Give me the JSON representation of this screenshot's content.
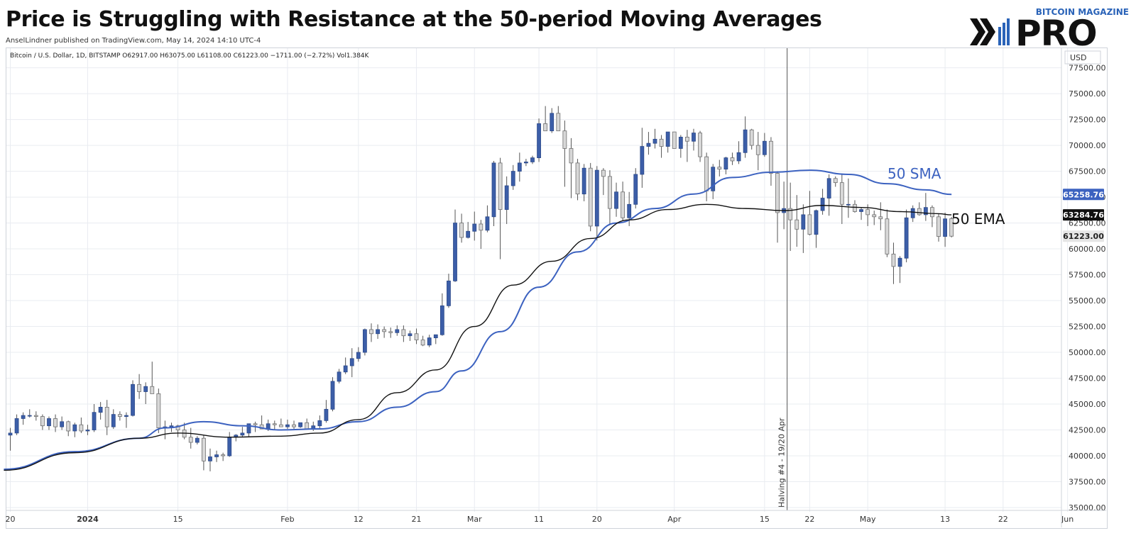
{
  "header": {
    "title": "Price is Struggling with Resistance at the 50-period Moving Averages",
    "byline": "AnselLindner published on TradingView.com, May 14, 2024 14:10 UTC-4",
    "logo_small": "BITCOIN MAGAZINE",
    "logo_big": "PRO"
  },
  "colors": {
    "up": "#3c5ea8",
    "down": "#d8d8d8",
    "wick": "#555555",
    "sma": "#3c62c0",
    "ema": "#111111",
    "grid": "#e9ecf1"
  },
  "chart_data": {
    "type": "candlestick",
    "symbol_info": "Bitcoin / U.S. Dollar, 1D, BITSTAMP  O62917.00  H63075.00  L61108.00  C61223.00  −1711.00 (−2.72%)  Vol1.384K",
    "currency": "USD",
    "y_axis": {
      "ticks": [
        "77500.00",
        "75000.00",
        "72500.00",
        "70000.00",
        "67500.00",
        "65000.00",
        "62500.00",
        "60000.00",
        "57500.00",
        "55000.00",
        "52500.00",
        "50000.00",
        "47500.00",
        "45000.00",
        "42500.00",
        "40000.00",
        "37500.00",
        "35000.00"
      ],
      "range": [
        35000,
        78500
      ]
    },
    "x_axis": {
      "labels": [
        {
          "text": "20",
          "day": 0,
          "bold": false
        },
        {
          "text": "2024",
          "day": 12,
          "bold": true
        },
        {
          "text": "15",
          "day": 26,
          "bold": false
        },
        {
          "text": "Feb",
          "day": 43,
          "bold": false
        },
        {
          "text": "12",
          "day": 54,
          "bold": false
        },
        {
          "text": "21",
          "day": 63,
          "bold": false
        },
        {
          "text": "Mar",
          "day": 72,
          "bold": false
        },
        {
          "text": "11",
          "day": 82,
          "bold": false
        },
        {
          "text": "20",
          "day": 91,
          "bold": false
        },
        {
          "text": "Apr",
          "day": 103,
          "bold": false
        },
        {
          "text": "15",
          "day": 117,
          "bold": false
        },
        {
          "text": "22",
          "day": 124,
          "bold": false
        },
        {
          "text": "May",
          "day": 133,
          "bold": false
        },
        {
          "text": "13",
          "day": 145,
          "bold": false
        },
        {
          "text": "22",
          "day": 154,
          "bold": false
        },
        {
          "text": "Jun",
          "day": 164,
          "bold": false
        }
      ]
    },
    "price_tags": [
      {
        "value": 65258.76,
        "label": "65258.76",
        "bg": "#3c62c0",
        "fg": "#ffffff"
      },
      {
        "value": 63284.76,
        "label": "63284.76",
        "bg": "#111111",
        "fg": "#ffffff"
      },
      {
        "value": 61223.0,
        "label": "61223.00",
        "bg": "#e6e6e6",
        "fg": "#222222"
      }
    ],
    "vertical_marker": {
      "day": 120.5,
      "label": "Halving #4 - 19/20 Apr"
    },
    "series": [
      {
        "name": "50 SMA",
        "points": [
          [
            -1,
            38700
          ],
          [
            10,
            40400
          ],
          [
            20,
            41700
          ],
          [
            24,
            42700
          ],
          [
            30,
            43300
          ],
          [
            36,
            42900
          ],
          [
            42,
            42500
          ],
          [
            48,
            42600
          ],
          [
            54,
            43300
          ],
          [
            60,
            44700
          ],
          [
            66,
            46200
          ],
          [
            70,
            48200
          ],
          [
            76,
            52000
          ],
          [
            82,
            56300
          ],
          [
            88,
            59700
          ],
          [
            94,
            62500
          ],
          [
            100,
            63900
          ],
          [
            106,
            65300
          ],
          [
            112,
            66900
          ],
          [
            118,
            67400
          ],
          [
            124,
            67600
          ],
          [
            130,
            67200
          ],
          [
            136,
            66300
          ],
          [
            142,
            65700
          ],
          [
            146,
            65258.76
          ]
        ]
      },
      {
        "name": "50 EMA",
        "points": [
          [
            -1,
            38600
          ],
          [
            10,
            40300
          ],
          [
            20,
            41700
          ],
          [
            26,
            42200
          ],
          [
            34,
            41800
          ],
          [
            42,
            41900
          ],
          [
            48,
            42200
          ],
          [
            54,
            43500
          ],
          [
            60,
            46100
          ],
          [
            66,
            48300
          ],
          [
            72,
            52500
          ],
          [
            78,
            56500
          ],
          [
            84,
            58800
          ],
          [
            90,
            61000
          ],
          [
            96,
            62800
          ],
          [
            102,
            63800
          ],
          [
            108,
            64300
          ],
          [
            114,
            63900
          ],
          [
            120,
            63700
          ],
          [
            126,
            64200
          ],
          [
            132,
            64000
          ],
          [
            138,
            63600
          ],
          [
            144,
            63400
          ],
          [
            146,
            63284.76
          ]
        ]
      }
    ],
    "candles": [
      [
        0,
        42000,
        42700,
        40500,
        42200
      ],
      [
        1,
        42200,
        44000,
        42000,
        43600
      ],
      [
        2,
        43600,
        44200,
        43000,
        43900
      ],
      [
        3,
        43900,
        44500,
        43700,
        43900
      ],
      [
        4,
        43900,
        44300,
        43400,
        43800
      ],
      [
        5,
        43800,
        44000,
        42500,
        42900
      ],
      [
        6,
        42900,
        43800,
        42500,
        43600
      ],
      [
        7,
        43600,
        44000,
        42300,
        42800
      ],
      [
        8,
        42800,
        43800,
        42500,
        43300
      ],
      [
        9,
        43300,
        43400,
        41900,
        42400
      ],
      [
        10,
        42400,
        43200,
        41800,
        43000
      ],
      [
        11,
        43000,
        43700,
        42200,
        42400
      ],
      [
        12,
        42400,
        43000,
        42000,
        42500
      ],
      [
        13,
        42500,
        45000,
        42300,
        44200
      ],
      [
        14,
        44200,
        45200,
        43500,
        44700
      ],
      [
        15,
        44700,
        45400,
        42000,
        42800
      ],
      [
        16,
        42800,
        44500,
        42600,
        44000
      ],
      [
        17,
        44000,
        44300,
        43400,
        43800
      ],
      [
        18,
        43800,
        44200,
        42700,
        43900
      ],
      [
        19,
        43900,
        47300,
        43800,
        46900
      ],
      [
        20,
        46900,
        47900,
        45500,
        46200
      ],
      [
        21,
        46200,
        47100,
        45000,
        46700
      ],
      [
        22,
        46700,
        49100,
        46000,
        46000
      ],
      [
        23,
        46000,
        46500,
        42200,
        42700
      ],
      [
        24,
        42700,
        43400,
        41600,
        42800
      ],
      [
        25,
        42800,
        43200,
        42300,
        42900
      ],
      [
        26,
        42900,
        43000,
        41800,
        42500
      ],
      [
        27,
        42500,
        43200,
        41600,
        41800
      ],
      [
        28,
        41800,
        42700,
        40700,
        41300
      ],
      [
        29,
        41300,
        41900,
        41100,
        41700
      ],
      [
        30,
        41700,
        42000,
        38600,
        39500
      ],
      [
        31,
        39500,
        40700,
        38500,
        39900
      ],
      [
        32,
        39900,
        40500,
        39400,
        40100
      ],
      [
        33,
        40100,
        40300,
        39500,
        40000
      ],
      [
        34,
        40000,
        42300,
        39900,
        41800
      ],
      [
        35,
        41800,
        42100,
        41400,
        42000
      ],
      [
        36,
        42000,
        42800,
        41800,
        42200
      ],
      [
        37,
        42200,
        43000,
        41800,
        43100
      ],
      [
        38,
        43100,
        43300,
        42300,
        43000
      ],
      [
        39,
        43000,
        43900,
        42700,
        42600
      ],
      [
        40,
        42600,
        43500,
        42400,
        43100
      ],
      [
        41,
        43100,
        43400,
        42500,
        43000
      ],
      [
        42,
        43000,
        43600,
        42800,
        42800
      ],
      [
        43,
        42800,
        43500,
        42600,
        43000
      ],
      [
        44,
        43000,
        43400,
        42600,
        42800
      ],
      [
        45,
        42800,
        43200,
        42700,
        43200
      ],
      [
        46,
        43200,
        43600,
        42900,
        42600
      ],
      [
        47,
        42600,
        43300,
        42400,
        42900
      ],
      [
        48,
        42900,
        43900,
        42600,
        43400
      ],
      [
        49,
        43400,
        45400,
        43200,
        44500
      ],
      [
        50,
        44500,
        47600,
        44300,
        47200
      ],
      [
        51,
        47200,
        48400,
        47000,
        48100
      ],
      [
        52,
        48100,
        49500,
        47900,
        48700
      ],
      [
        53,
        48700,
        50400,
        47600,
        49400
      ],
      [
        54,
        49400,
        50500,
        49100,
        50000
      ],
      [
        55,
        50000,
        52300,
        49700,
        52200
      ],
      [
        56,
        52200,
        52800,
        51000,
        51800
      ],
      [
        57,
        51800,
        52700,
        51300,
        52200
      ],
      [
        58,
        52200,
        52500,
        51400,
        52000
      ],
      [
        59,
        52000,
        52400,
        51400,
        51900
      ],
      [
        60,
        51900,
        52600,
        51600,
        52200
      ],
      [
        61,
        52200,
        52600,
        51000,
        51600
      ],
      [
        62,
        51600,
        52100,
        51100,
        51800
      ],
      [
        63,
        51800,
        52300,
        50800,
        51200
      ],
      [
        64,
        51200,
        51600,
        50600,
        50700
      ],
      [
        65,
        50700,
        51700,
        50500,
        51400
      ],
      [
        66,
        51400,
        51700,
        50800,
        51700
      ],
      [
        67,
        51700,
        55700,
        51600,
        54500
      ],
      [
        68,
        54500,
        57600,
        54300,
        56900
      ],
      [
        69,
        56900,
        63800,
        56800,
        62500
      ],
      [
        70,
        62500,
        63400,
        60600,
        61100
      ],
      [
        71,
        61100,
        62600,
        61000,
        61700
      ],
      [
        72,
        61700,
        63600,
        60800,
        62400
      ],
      [
        73,
        62400,
        62800,
        60000,
        61800
      ],
      [
        74,
        61800,
        64200,
        61600,
        63100
      ],
      [
        75,
        63100,
        68500,
        62200,
        68300
      ],
      [
        76,
        68300,
        68800,
        59000,
        63800
      ],
      [
        77,
        63800,
        67000,
        62400,
        66100
      ],
      [
        78,
        66100,
        68100,
        65700,
        67500
      ],
      [
        79,
        67500,
        69300,
        66500,
        68300
      ],
      [
        80,
        68300,
        68700,
        68000,
        68400
      ],
      [
        81,
        68400,
        69000,
        68200,
        68800
      ],
      [
        82,
        68800,
        72600,
        68400,
        72100
      ],
      [
        83,
        72100,
        73800,
        71400,
        71400
      ],
      [
        84,
        71400,
        73600,
        71200,
        73100
      ],
      [
        85,
        73100,
        73800,
        71400,
        71400
      ],
      [
        86,
        71400,
        72400,
        66000,
        69700
      ],
      [
        87,
        69700,
        70700,
        64900,
        68300
      ],
      [
        88,
        68300,
        68700,
        64700,
        65300
      ],
      [
        89,
        65300,
        68200,
        64600,
        67800
      ],
      [
        90,
        67800,
        68300,
        61700,
        62200
      ],
      [
        91,
        62200,
        68000,
        60800,
        67600
      ],
      [
        92,
        67600,
        67800,
        65200,
        67000
      ],
      [
        93,
        67000,
        67600,
        62300,
        63900
      ],
      [
        94,
        63900,
        66400,
        63100,
        65500
      ],
      [
        95,
        65500,
        66500,
        62700,
        63000
      ],
      [
        96,
        63000,
        65500,
        62200,
        64300
      ],
      [
        97,
        64300,
        67800,
        63900,
        67200
      ],
      [
        98,
        67200,
        71700,
        65900,
        69900
      ],
      [
        99,
        69900,
        71300,
        69100,
        70200
      ],
      [
        100,
        70200,
        71600,
        69700,
        70600
      ],
      [
        101,
        70600,
        71000,
        68800,
        69900
      ],
      [
        102,
        69900,
        71300,
        69300,
        71300
      ],
      [
        103,
        71300,
        71300,
        69700,
        69700
      ],
      [
        104,
        69700,
        71000,
        68800,
        70800
      ],
      [
        105,
        70800,
        71500,
        68400,
        70400
      ],
      [
        106,
        70400,
        71600,
        69500,
        71200
      ],
      [
        107,
        71200,
        71400,
        68400,
        68900
      ],
      [
        108,
        68900,
        69300,
        64600,
        65600
      ],
      [
        109,
        65600,
        68200,
        64800,
        67900
      ],
      [
        110,
        67900,
        68600,
        67000,
        67700
      ],
      [
        111,
        67700,
        68900,
        67200,
        68800
      ],
      [
        112,
        68800,
        69300,
        68100,
        68500
      ],
      [
        113,
        68500,
        70400,
        68200,
        69300
      ],
      [
        114,
        69300,
        72800,
        68800,
        71500
      ],
      [
        115,
        71500,
        71600,
        69600,
        70000
      ],
      [
        116,
        70000,
        71300,
        67600,
        69100
      ],
      [
        117,
        69100,
        71200,
        68900,
        70400
      ],
      [
        118,
        70400,
        70800,
        66100,
        67300
      ],
      [
        119,
        67300,
        67500,
        60600,
        63500
      ],
      [
        120,
        63500,
        66500,
        61900,
        63900
      ],
      [
        121,
        63900,
        66400,
        59800,
        62800
      ],
      [
        122,
        62800,
        65200,
        60200,
        61900
      ],
      [
        123,
        61900,
        64300,
        59600,
        63300
      ],
      [
        124,
        63300,
        65600,
        61300,
        61400
      ],
      [
        125,
        61400,
        63800,
        60100,
        63700
      ],
      [
        126,
        63700,
        65800,
        63300,
        64900
      ],
      [
        127,
        64900,
        67200,
        63200,
        66800
      ],
      [
        128,
        66800,
        67000,
        66000,
        66400
      ],
      [
        129,
        66400,
        67200,
        62400,
        64300
      ],
      [
        130,
        64300,
        66800,
        63000,
        64300
      ],
      [
        131,
        64300,
        64700,
        63500,
        63600
      ],
      [
        132,
        63600,
        64000,
        62800,
        63800
      ],
      [
        133,
        63800,
        64300,
        62200,
        63300
      ],
      [
        134,
        63300,
        63700,
        62300,
        63100
      ],
      [
        135,
        63100,
        64500,
        61800,
        62900
      ],
      [
        136,
        62900,
        63800,
        59200,
        59500
      ],
      [
        137,
        59500,
        60600,
        56600,
        58300
      ],
      [
        138,
        58300,
        59300,
        56700,
        59100
      ],
      [
        139,
        59100,
        63800,
        58700,
        63000
      ],
      [
        140,
        63000,
        64200,
        62600,
        63900
      ],
      [
        141,
        63900,
        64500,
        63200,
        63300
      ],
      [
        142,
        63300,
        65400,
        62700,
        64000
      ],
      [
        143,
        64000,
        64200,
        62100,
        63100
      ],
      [
        144,
        63100,
        63400,
        60700,
        61200
      ],
      [
        145,
        61200,
        63500,
        60200,
        62900
      ],
      [
        146,
        62917,
        63075,
        61108,
        61223
      ]
    ]
  }
}
